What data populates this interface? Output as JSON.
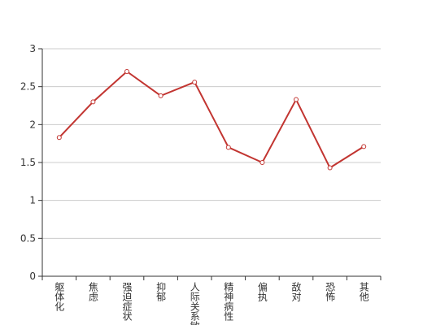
{
  "chart_data": {
    "type": "line",
    "categories": [
      "躯体化",
      "焦虑",
      "强迫症状",
      "抑郁",
      "人际关系敏感",
      "精神病性",
      "偏执",
      "敌对",
      "恐怖",
      "其他"
    ],
    "values": [
      1.83,
      2.3,
      2.7,
      2.38,
      2.56,
      1.7,
      1.5,
      2.33,
      1.43,
      1.71
    ],
    "color": "#c23531",
    "ylim": [
      0,
      3
    ],
    "yticks": [
      0,
      0.5,
      1,
      1.5,
      2,
      2.5,
      3
    ],
    "grid": true
  }
}
